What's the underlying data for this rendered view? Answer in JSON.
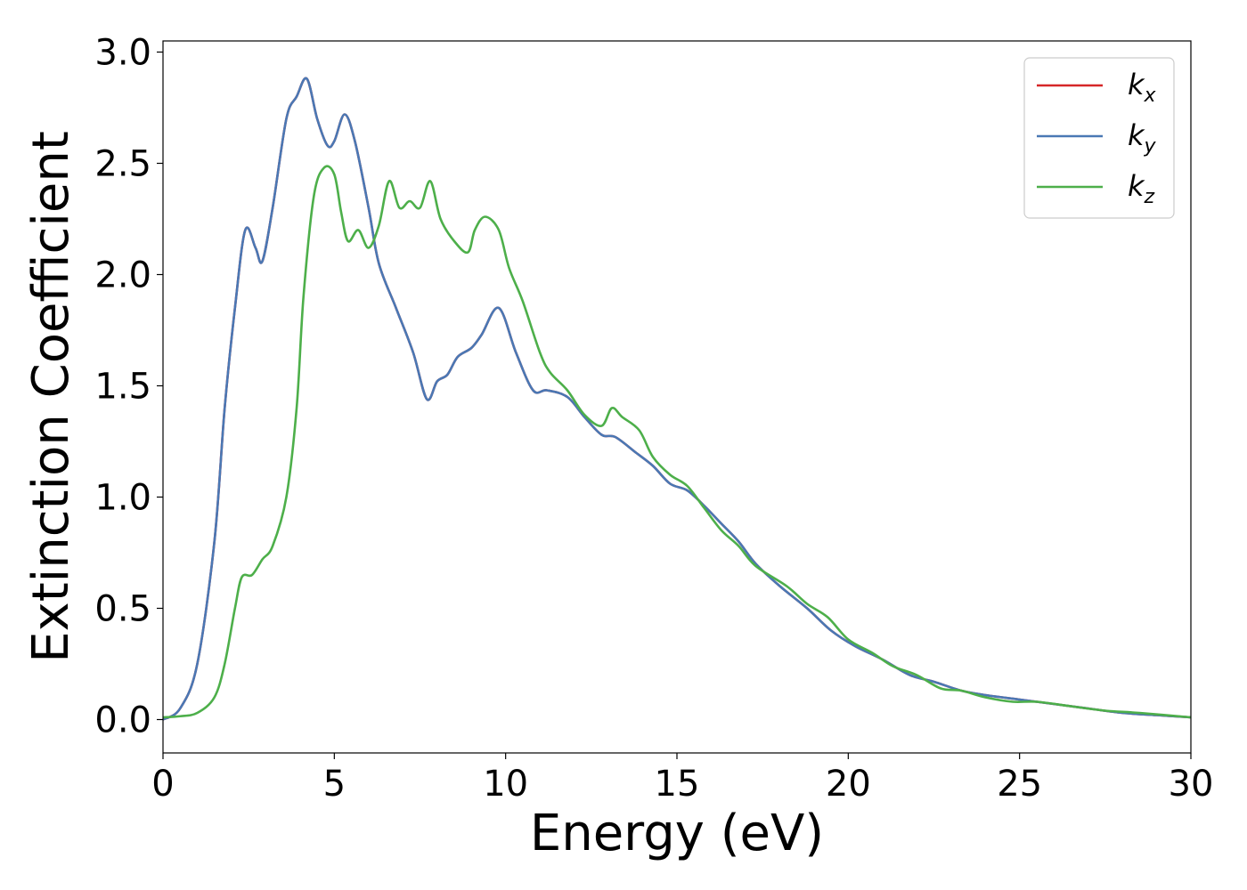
{
  "chart_data": {
    "type": "line",
    "xlabel": "Energy (eV)",
    "ylabel": "Extinction Coefficient",
    "xlim": [
      0,
      30
    ],
    "ylim": [
      -0.15,
      3.05
    ],
    "xticks": [
      "0",
      "5",
      "10",
      "15",
      "20",
      "25",
      "30"
    ],
    "yticks": [
      "0.0",
      "0.5",
      "1.0",
      "1.5",
      "2.0",
      "2.5",
      "3.0"
    ],
    "grid": false,
    "legend_position": "top-right",
    "series": [
      {
        "name": "k",
        "subscript": "x",
        "color": "#d62728",
        "points": [
          [
            0,
            0.0
          ],
          [
            0.5,
            0.05
          ],
          [
            1.0,
            0.25
          ],
          [
            1.5,
            0.8
          ],
          [
            1.8,
            1.4
          ],
          [
            2.1,
            1.85
          ],
          [
            2.4,
            2.2
          ],
          [
            2.7,
            2.12
          ],
          [
            2.9,
            2.06
          ],
          [
            3.2,
            2.3
          ],
          [
            3.6,
            2.7
          ],
          [
            3.9,
            2.8
          ],
          [
            4.2,
            2.88
          ],
          [
            4.5,
            2.7
          ],
          [
            4.8,
            2.58
          ],
          [
            5.0,
            2.6
          ],
          [
            5.3,
            2.72
          ],
          [
            5.6,
            2.6
          ],
          [
            6.0,
            2.3
          ],
          [
            6.3,
            2.05
          ],
          [
            6.8,
            1.85
          ],
          [
            7.3,
            1.65
          ],
          [
            7.7,
            1.44
          ],
          [
            8.0,
            1.52
          ],
          [
            8.3,
            1.55
          ],
          [
            8.6,
            1.63
          ],
          [
            9.0,
            1.67
          ],
          [
            9.3,
            1.73
          ],
          [
            9.8,
            1.85
          ],
          [
            10.3,
            1.65
          ],
          [
            10.8,
            1.48
          ],
          [
            11.2,
            1.48
          ],
          [
            11.8,
            1.45
          ],
          [
            12.3,
            1.36
          ],
          [
            12.8,
            1.28
          ],
          [
            13.2,
            1.27
          ],
          [
            13.8,
            1.2
          ],
          [
            14.3,
            1.14
          ],
          [
            14.8,
            1.06
          ],
          [
            15.3,
            1.03
          ],
          [
            15.8,
            0.96
          ],
          [
            16.3,
            0.88
          ],
          [
            16.8,
            0.8
          ],
          [
            17.3,
            0.7
          ],
          [
            18.0,
            0.6
          ],
          [
            18.8,
            0.5
          ],
          [
            19.5,
            0.4
          ],
          [
            20.2,
            0.33
          ],
          [
            21.0,
            0.27
          ],
          [
            21.8,
            0.2
          ],
          [
            22.5,
            0.17
          ],
          [
            23.3,
            0.13
          ],
          [
            24.0,
            0.11
          ],
          [
            25.0,
            0.09
          ],
          [
            26.0,
            0.07
          ],
          [
            27.0,
            0.05
          ],
          [
            28.0,
            0.03
          ],
          [
            29.0,
            0.02
          ],
          [
            30.0,
            0.01
          ]
        ]
      },
      {
        "name": "k",
        "subscript": "y",
        "color": "#4a78b4",
        "points": [
          [
            0,
            0.0
          ],
          [
            0.5,
            0.05
          ],
          [
            1.0,
            0.25
          ],
          [
            1.5,
            0.8
          ],
          [
            1.8,
            1.4
          ],
          [
            2.1,
            1.85
          ],
          [
            2.4,
            2.2
          ],
          [
            2.7,
            2.12
          ],
          [
            2.9,
            2.06
          ],
          [
            3.2,
            2.3
          ],
          [
            3.6,
            2.7
          ],
          [
            3.9,
            2.8
          ],
          [
            4.2,
            2.88
          ],
          [
            4.5,
            2.7
          ],
          [
            4.8,
            2.58
          ],
          [
            5.0,
            2.6
          ],
          [
            5.3,
            2.72
          ],
          [
            5.6,
            2.6
          ],
          [
            6.0,
            2.3
          ],
          [
            6.3,
            2.05
          ],
          [
            6.8,
            1.85
          ],
          [
            7.3,
            1.65
          ],
          [
            7.7,
            1.44
          ],
          [
            8.0,
            1.52
          ],
          [
            8.3,
            1.55
          ],
          [
            8.6,
            1.63
          ],
          [
            9.0,
            1.67
          ],
          [
            9.3,
            1.73
          ],
          [
            9.8,
            1.85
          ],
          [
            10.3,
            1.65
          ],
          [
            10.8,
            1.48
          ],
          [
            11.2,
            1.48
          ],
          [
            11.8,
            1.45
          ],
          [
            12.3,
            1.36
          ],
          [
            12.8,
            1.28
          ],
          [
            13.2,
            1.27
          ],
          [
            13.8,
            1.2
          ],
          [
            14.3,
            1.14
          ],
          [
            14.8,
            1.06
          ],
          [
            15.3,
            1.03
          ],
          [
            15.8,
            0.96
          ],
          [
            16.3,
            0.88
          ],
          [
            16.8,
            0.8
          ],
          [
            17.3,
            0.7
          ],
          [
            18.0,
            0.6
          ],
          [
            18.8,
            0.5
          ],
          [
            19.5,
            0.4
          ],
          [
            20.2,
            0.33
          ],
          [
            21.0,
            0.27
          ],
          [
            21.8,
            0.2
          ],
          [
            22.5,
            0.17
          ],
          [
            23.3,
            0.13
          ],
          [
            24.0,
            0.11
          ],
          [
            25.0,
            0.09
          ],
          [
            26.0,
            0.07
          ],
          [
            27.0,
            0.05
          ],
          [
            28.0,
            0.03
          ],
          [
            29.0,
            0.02
          ],
          [
            30.0,
            0.01
          ]
        ]
      },
      {
        "name": "k",
        "subscript": "z",
        "color": "#4daf4a",
        "points": [
          [
            0,
            0.01
          ],
          [
            0.5,
            0.015
          ],
          [
            1.0,
            0.03
          ],
          [
            1.5,
            0.1
          ],
          [
            1.8,
            0.25
          ],
          [
            2.1,
            0.5
          ],
          [
            2.3,
            0.64
          ],
          [
            2.6,
            0.65
          ],
          [
            2.9,
            0.72
          ],
          [
            3.2,
            0.78
          ],
          [
            3.6,
            1.0
          ],
          [
            3.9,
            1.4
          ],
          [
            4.1,
            1.9
          ],
          [
            4.4,
            2.35
          ],
          [
            4.7,
            2.48
          ],
          [
            5.0,
            2.45
          ],
          [
            5.2,
            2.28
          ],
          [
            5.4,
            2.15
          ],
          [
            5.7,
            2.2
          ],
          [
            6.0,
            2.12
          ],
          [
            6.3,
            2.22
          ],
          [
            6.6,
            2.42
          ],
          [
            6.9,
            2.3
          ],
          [
            7.2,
            2.33
          ],
          [
            7.5,
            2.3
          ],
          [
            7.8,
            2.42
          ],
          [
            8.1,
            2.25
          ],
          [
            8.5,
            2.15
          ],
          [
            8.9,
            2.1
          ],
          [
            9.1,
            2.2
          ],
          [
            9.4,
            2.26
          ],
          [
            9.8,
            2.2
          ],
          [
            10.1,
            2.03
          ],
          [
            10.5,
            1.88
          ],
          [
            11.0,
            1.65
          ],
          [
            11.3,
            1.56
          ],
          [
            11.8,
            1.48
          ],
          [
            12.3,
            1.37
          ],
          [
            12.8,
            1.32
          ],
          [
            13.1,
            1.4
          ],
          [
            13.4,
            1.36
          ],
          [
            13.9,
            1.3
          ],
          [
            14.3,
            1.18
          ],
          [
            14.8,
            1.1
          ],
          [
            15.3,
            1.05
          ],
          [
            15.8,
            0.95
          ],
          [
            16.3,
            0.85
          ],
          [
            16.8,
            0.78
          ],
          [
            17.3,
            0.69
          ],
          [
            18.2,
            0.6
          ],
          [
            18.8,
            0.52
          ],
          [
            19.4,
            0.46
          ],
          [
            20.0,
            0.36
          ],
          [
            20.7,
            0.3
          ],
          [
            21.3,
            0.24
          ],
          [
            22.0,
            0.2
          ],
          [
            22.7,
            0.14
          ],
          [
            23.3,
            0.13
          ],
          [
            24.0,
            0.1
          ],
          [
            24.8,
            0.08
          ],
          [
            25.5,
            0.08
          ],
          [
            26.5,
            0.06
          ],
          [
            27.5,
            0.04
          ],
          [
            28.5,
            0.03
          ],
          [
            30.0,
            0.01
          ]
        ]
      }
    ]
  }
}
